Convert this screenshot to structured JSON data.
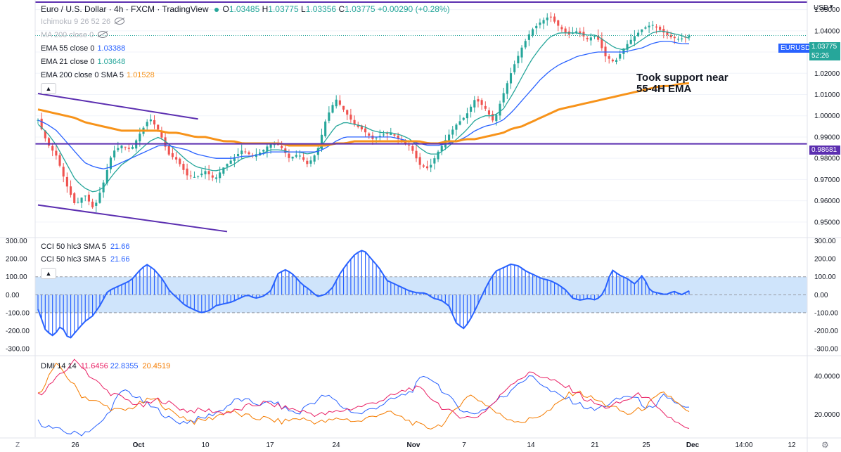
{
  "header": {
    "title": "Euro / U.S. Dollar · 4h · FXCM · TradingView",
    "ohlc": {
      "o_label": "O",
      "o": "1.03485",
      "h_label": "H",
      "h": "1.03775",
      "l_label": "L",
      "l": "1.03356",
      "c_label": "C",
      "c": "1.03775",
      "change": "+0.00290 (+0.28%)"
    }
  },
  "legend": {
    "ichimoku": "Ichimoku 9 26 52 26",
    "ma200": "MA 200 close 0",
    "ema55": {
      "label": "EMA 55 close 0",
      "value": "1.03388"
    },
    "ema21": {
      "label": "EMA 21 close 0",
      "value": "1.03648"
    },
    "ema200": {
      "label": "EMA 200 close 0 SMA 5",
      "value": "1.01528"
    }
  },
  "price_axis": {
    "currency": "USD",
    "symbol_tag": "EURUSD",
    "price_tag": "1.03775",
    "countdown": "52:26",
    "level_tag": "0.98681"
  },
  "annotation": {
    "line1": "Took support near",
    "line2": "55-4H EMA"
  },
  "cci_legend": {
    "line1": "CCI 50 hlc3 SMA 5",
    "v1": "21.66",
    "line2": "CCI 50 hlc3 SMA 5",
    "v2": "21.66"
  },
  "dmi_legend": {
    "label": "DMI 14 14",
    "v1": "11.6456",
    "v2": "22.8355",
    "v3": "20.4519"
  },
  "time_axis": {
    "left": "Z",
    "labels": [
      "26",
      "Oct",
      "10",
      "17",
      "24",
      "Nov",
      "7",
      "14",
      "21",
      "25",
      "Dec",
      "14:00",
      "12"
    ]
  },
  "colors": {
    "up": "#26a69a",
    "down": "#ef5350",
    "ema21": "#26a69a",
    "ema55": "#2962ff",
    "ema200": "#f7931a",
    "channel": "#5b2eb0",
    "cci": "#2962ff",
    "cci_band": "#cfe4fb",
    "plus_di": "#2962ff",
    "minus_di": "#f57c00",
    "adx": "#e91e63"
  },
  "chart_data": [
    {
      "type": "candlestick",
      "title": "Euro / U.S. Dollar · 4h · FXCM",
      "ylim": [
        0.943,
        1.0545
      ],
      "yticks": [
        0.95,
        0.96,
        0.97,
        0.98,
        0.99,
        1.0,
        1.01,
        1.02,
        1.03,
        1.04,
        1.05
      ],
      "ytick_labels": [
        "0.95000",
        "0.96000",
        "0.97000",
        "0.98000",
        "0.99000",
        "1.00000",
        "1.01000",
        "1.02000",
        "1.03000",
        "1.04000",
        "1.05000"
      ],
      "bars": 180,
      "close_anchors": [
        0.998,
        0.987,
        0.981,
        0.968,
        0.958,
        0.963,
        0.956,
        0.968,
        0.983,
        0.986,
        0.984,
        0.992,
        0.999,
        0.993,
        0.982,
        0.979,
        0.972,
        0.971,
        0.974,
        0.97,
        0.976,
        0.98,
        0.984,
        0.981,
        0.983,
        0.987,
        0.986,
        0.98,
        0.982,
        0.977,
        0.983,
        0.999,
        1.008,
        1.002,
        0.996,
        0.993,
        0.989,
        0.991,
        0.992,
        0.988,
        0.986,
        0.977,
        0.975,
        0.983,
        0.99,
        0.996,
        1.0,
        1.008,
        1.004,
        0.997,
        1.01,
        1.022,
        1.032,
        1.04,
        1.044,
        1.047,
        1.042,
        1.038,
        1.04,
        1.036,
        1.038,
        1.028,
        1.025,
        1.032,
        1.037,
        1.041,
        1.043,
        1.04,
        1.037,
        1.036,
        1.0378
      ],
      "series": [
        {
          "name": "EMA 21",
          "values": [
            0.996,
            0.992,
            0.986,
            0.978,
            0.97,
            0.966,
            0.964,
            0.966,
            0.972,
            0.977,
            0.98,
            0.984,
            0.988,
            0.99,
            0.987,
            0.983,
            0.979,
            0.976,
            0.975,
            0.974,
            0.975,
            0.977,
            0.98,
            0.981,
            0.982,
            0.984,
            0.984,
            0.983,
            0.983,
            0.982,
            0.983,
            0.989,
            0.995,
            0.997,
            0.996,
            0.995,
            0.993,
            0.992,
            0.992,
            0.991,
            0.989,
            0.985,
            0.982,
            0.982,
            0.985,
            0.989,
            0.993,
            0.998,
            1.0,
            1.0,
            1.003,
            1.01,
            1.018,
            1.026,
            1.032,
            1.037,
            1.039,
            1.039,
            1.039,
            1.038,
            1.038,
            1.035,
            1.032,
            1.031,
            1.033,
            1.036,
            1.039,
            1.04,
            1.039,
            1.038,
            1.0365
          ]
        },
        {
          "name": "EMA 55",
          "values": [
            0.998,
            0.996,
            0.993,
            0.988,
            0.983,
            0.978,
            0.976,
            0.975,
            0.976,
            0.978,
            0.98,
            0.982,
            0.984,
            0.986,
            0.986,
            0.985,
            0.984,
            0.982,
            0.981,
            0.98,
            0.98,
            0.98,
            0.981,
            0.981,
            0.982,
            0.983,
            0.983,
            0.983,
            0.983,
            0.983,
            0.983,
            0.985,
            0.988,
            0.99,
            0.99,
            0.99,
            0.99,
            0.99,
            0.99,
            0.989,
            0.988,
            0.987,
            0.986,
            0.986,
            0.987,
            0.988,
            0.99,
            0.993,
            0.995,
            0.996,
            0.998,
            1.002,
            1.007,
            1.012,
            1.017,
            1.021,
            1.024,
            1.026,
            1.028,
            1.029,
            1.03,
            1.03,
            1.03,
            1.03,
            1.031,
            1.032,
            1.034,
            1.035,
            1.035,
            1.034,
            1.0339
          ]
        },
        {
          "name": "EMA 200",
          "values": [
            1.003,
            1.002,
            1.001,
            1.0,
            0.999,
            0.997,
            0.996,
            0.995,
            0.994,
            0.993,
            0.993,
            0.993,
            0.993,
            0.993,
            0.992,
            0.992,
            0.991,
            0.99,
            0.99,
            0.989,
            0.988,
            0.988,
            0.987,
            0.987,
            0.987,
            0.987,
            0.987,
            0.986,
            0.986,
            0.986,
            0.986,
            0.986,
            0.987,
            0.987,
            0.988,
            0.988,
            0.988,
            0.988,
            0.988,
            0.988,
            0.988,
            0.988,
            0.987,
            0.987,
            0.988,
            0.988,
            0.989,
            0.989,
            0.99,
            0.991,
            0.992,
            0.994,
            0.995,
            0.997,
            0.999,
            1.001,
            1.003,
            1.004,
            1.005,
            1.006,
            1.007,
            1.008,
            1.009,
            1.01,
            1.011,
            1.012,
            1.013,
            1.014,
            1.014,
            1.015,
            1.0153
          ]
        }
      ],
      "levels": [
        {
          "name": "horizontal",
          "value": 0.98681
        }
      ],
      "channel": {
        "upper": [
          [
            0,
            1.0105
          ],
          [
            44,
            0.9985
          ]
        ],
        "lower": [
          [
            0,
            0.958
          ],
          [
            52,
            0.9455
          ]
        ]
      },
      "x_labels": [
        "26",
        "Oct",
        "10",
        "17",
        "24",
        "Nov",
        "7",
        "14",
        "21",
        "25",
        "Dec",
        "14:00",
        "12"
      ]
    },
    {
      "type": "line",
      "title": "CCI 50 hlc3 SMA 5",
      "ylim": [
        -335,
        310
      ],
      "yticks": [
        -300,
        -200,
        -100,
        0,
        100,
        200,
        300
      ],
      "ytick_labels": [
        "-300.00",
        "-200.00",
        "-100.00",
        "0.00",
        "100.00",
        "200.00",
        "300.00"
      ],
      "band": [
        -100,
        100
      ],
      "values": [
        -80,
        -200,
        -230,
        -170,
        -250,
        -200,
        -150,
        -120,
        -60,
        20,
        40,
        60,
        80,
        130,
        170,
        140,
        90,
        20,
        -20,
        -60,
        -80,
        -100,
        -90,
        -60,
        -50,
        -40,
        -20,
        0,
        -20,
        -10,
        20,
        120,
        140,
        110,
        60,
        30,
        -10,
        0,
        40,
        120,
        180,
        230,
        250,
        200,
        150,
        80,
        60,
        40,
        20,
        10,
        10,
        -20,
        -30,
        -60,
        -160,
        -190,
        -120,
        -30,
        60,
        130,
        150,
        170,
        160,
        130,
        110,
        90,
        80,
        60,
        30,
        -20,
        -30,
        -20,
        -30,
        10,
        140,
        110,
        90,
        60,
        110,
        20,
        10,
        0,
        20,
        0,
        21.66
      ]
    },
    {
      "type": "line",
      "title": "DMI 14 14",
      "ylim": [
        8,
        50
      ],
      "yticks": [
        20,
        40
      ],
      "ytick_labels": [
        "20.0000",
        "40.0000"
      ],
      "series": [
        {
          "name": "+DI",
          "values": [
            16,
            14,
            12,
            11,
            10,
            10,
            12,
            14,
            20,
            28,
            33,
            30,
            27,
            24,
            22,
            18,
            16,
            16,
            17,
            18,
            20,
            22,
            25,
            28,
            27,
            26,
            25,
            27,
            24,
            22,
            20,
            25,
            27,
            30,
            28,
            24,
            22,
            20,
            22,
            24,
            26,
            28,
            30,
            32,
            38,
            40,
            36,
            30,
            26,
            22,
            20,
            22,
            24,
            28,
            30,
            36,
            38,
            40,
            36,
            32,
            30,
            28,
            26,
            24,
            22,
            24,
            26,
            28,
            30,
            28,
            24,
            22,
            30,
            28,
            24,
            22.8355
          ]
        },
        {
          "name": "-DI",
          "values": [
            30,
            38,
            46,
            42,
            36,
            30,
            28,
            26,
            24,
            22,
            22,
            24,
            26,
            28,
            27,
            22,
            20,
            18,
            16,
            17,
            18,
            20,
            22,
            20,
            19,
            18,
            18,
            17,
            16,
            17,
            18,
            17,
            16,
            16,
            17,
            18,
            17,
            16,
            18,
            20,
            21,
            20,
            18,
            16,
            14,
            13,
            14,
            16,
            22,
            28,
            30,
            27,
            24,
            20,
            18,
            17,
            16,
            18,
            20,
            22,
            26,
            30,
            32,
            30,
            28,
            26,
            24,
            22,
            20,
            22,
            24,
            28,
            31,
            29,
            24,
            20.4519
          ]
        },
        {
          "name": "ADX",
          "values": [
            30,
            34,
            38,
            42,
            48,
            46,
            40,
            36,
            32,
            30,
            28,
            26,
            24,
            26,
            28,
            26,
            24,
            22,
            22,
            22,
            22,
            21,
            21,
            22,
            24,
            25,
            26,
            25,
            24,
            23,
            22,
            21,
            20,
            20,
            21,
            22,
            23,
            24,
            25,
            27,
            28,
            30,
            32,
            34,
            33,
            30,
            26,
            22,
            20,
            19,
            18,
            20,
            24,
            28,
            34,
            38,
            40,
            42,
            40,
            38,
            36,
            34,
            32,
            28,
            26,
            24,
            24,
            26,
            28,
            30,
            30,
            24,
            20,
            18,
            14,
            11.6456
          ]
        }
      ]
    }
  ]
}
